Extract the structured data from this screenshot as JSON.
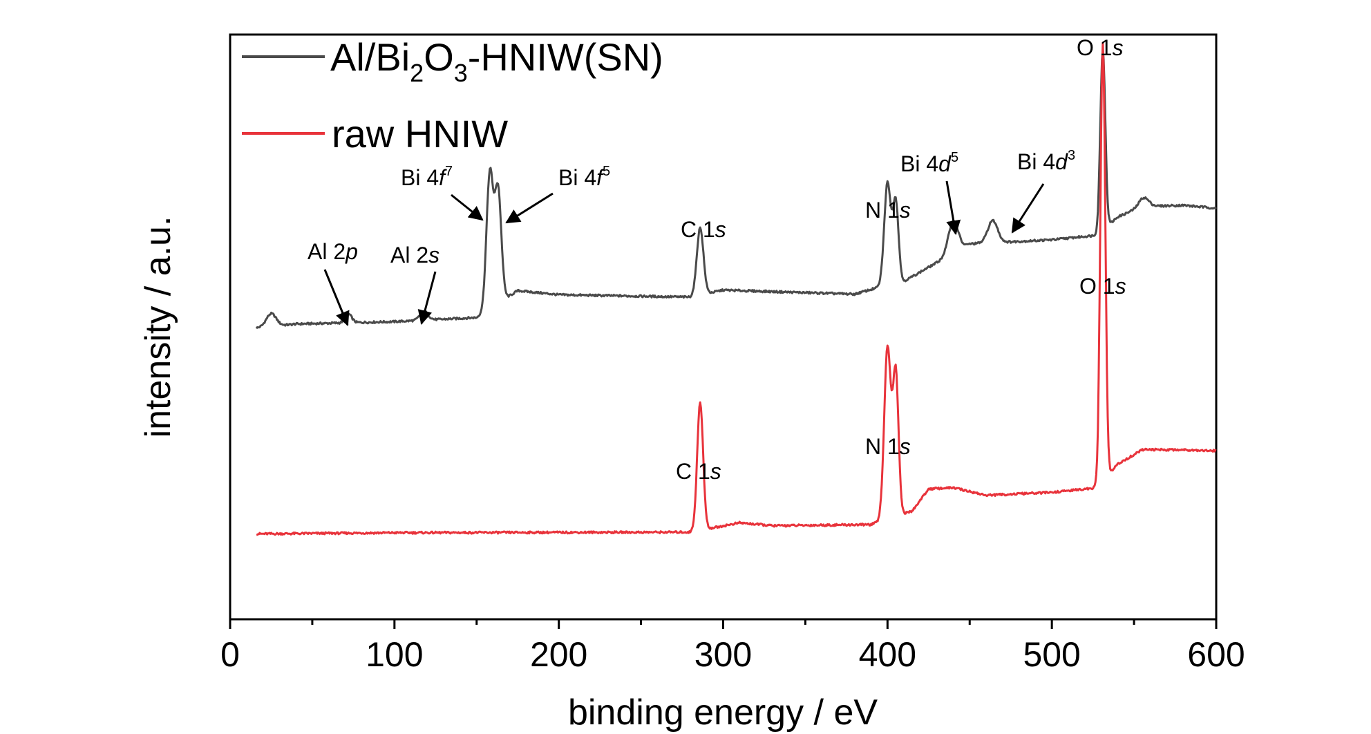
{
  "chart_data": {
    "type": "line",
    "title": "",
    "xlabel": "binding energy / eV",
    "ylabel": "intensity / a.u.",
    "xlim": [
      0,
      600
    ],
    "xticks": [
      0,
      100,
      200,
      300,
      400,
      500,
      600
    ],
    "yticks": [],
    "ylim": [
      0,
      100
    ],
    "grid": false,
    "legend_position": "top-left",
    "legend": {
      "series0": {
        "base": "Al/Bi",
        "sub1": "2",
        "mid": "O",
        "sub2": "3",
        "tail": "-HNIW(SN)"
      },
      "series1": "raw HNIW"
    },
    "colors": {
      "series0": "#4a4a4a",
      "series1": "#e8333b"
    },
    "series": [
      {
        "name": "Al/Bi2O3-HNIW(SN)",
        "color": "#4a4a4a",
        "baseline": [
          [
            16,
            49.8
          ],
          [
            40,
            50.5
          ],
          [
            100,
            50.9
          ],
          [
            150,
            51.6
          ],
          [
            155,
            52.6
          ],
          [
            175,
            56.2
          ],
          [
            200,
            55.5
          ],
          [
            280,
            55.1
          ],
          [
            300,
            56.3
          ],
          [
            380,
            55.6
          ],
          [
            395,
            56.8
          ],
          [
            410,
            57.8
          ],
          [
            430,
            61.0
          ],
          [
            450,
            64.2
          ],
          [
            500,
            64.9
          ],
          [
            528,
            65.7
          ],
          [
            540,
            68.8
          ],
          [
            555,
            70.6
          ],
          [
            580,
            70.8
          ],
          [
            600,
            70.3
          ]
        ],
        "peaks": [
          [
            25,
            2.2,
            3
          ],
          [
            72,
            1.5,
            2
          ],
          [
            118,
            1.5,
            2.5
          ],
          [
            158,
            23.0,
            2.0
          ],
          [
            163,
            19.5,
            2.0
          ],
          [
            286,
            11.5,
            2.0
          ],
          [
            400,
            17.5,
            2.0
          ],
          [
            405,
            14.0,
            1.7
          ],
          [
            440,
            5.5,
            3.0
          ],
          [
            464,
            3.8,
            3.0
          ],
          [
            531,
            31.0,
            1.5
          ],
          [
            556,
            1.5,
            3.0
          ]
        ]
      },
      {
        "name": "raw HNIW",
        "color": "#e8333b",
        "baseline": [
          [
            16,
            14.6
          ],
          [
            100,
            14.8
          ],
          [
            280,
            14.9
          ],
          [
            310,
            16.5
          ],
          [
            330,
            16.0
          ],
          [
            390,
            16.2
          ],
          [
            415,
            18.5
          ],
          [
            425,
            22.3
          ],
          [
            440,
            22.5
          ],
          [
            460,
            21.2
          ],
          [
            500,
            21.7
          ],
          [
            528,
            22.5
          ],
          [
            540,
            26.5
          ],
          [
            555,
            29.0
          ],
          [
            580,
            29.0
          ],
          [
            600,
            28.8
          ]
        ],
        "peaks": [
          [
            286,
            21.8,
            1.8
          ],
          [
            400,
            29.5,
            2.0
          ],
          [
            405,
            24.5,
            1.7
          ],
          [
            531,
            75.0,
            1.5
          ]
        ]
      }
    ],
    "annotations": [
      {
        "text": "Al 2",
        "italic": "p",
        "sup": "",
        "x": 72,
        "arrow": true
      },
      {
        "text": "Al 2",
        "italic": "s",
        "sup": "",
        "x": 118,
        "arrow": true
      },
      {
        "text": "Bi 4",
        "italic": "f",
        "sup": "7",
        "x": 158,
        "arrow": true
      },
      {
        "text": "Bi 4",
        "italic": "f",
        "sup": "5",
        "x": 163,
        "arrow": true
      },
      {
        "text": "C 1",
        "italic": "s",
        "sup": "",
        "x": 286,
        "arrow": false
      },
      {
        "text": "N 1",
        "italic": "s",
        "sup": "",
        "x": 400,
        "arrow": false
      },
      {
        "text": "Bi 4",
        "italic": "d",
        "sup": "5",
        "x": 440,
        "arrow": true
      },
      {
        "text": "Bi 4",
        "italic": "d",
        "sup": "3",
        "x": 464,
        "arrow": true
      },
      {
        "text": "O 1",
        "italic": "s",
        "sup": "",
        "x": 531,
        "arrow": false
      },
      {
        "text": "C 1",
        "italic": "s",
        "sup": "",
        "x": 286,
        "arrow": false
      },
      {
        "text": "N 1",
        "italic": "s",
        "sup": "",
        "x": 400,
        "arrow": false
      },
      {
        "text": "O 1",
        "italic": "s",
        "sup": "",
        "x": 531,
        "arrow": false
      }
    ]
  }
}
